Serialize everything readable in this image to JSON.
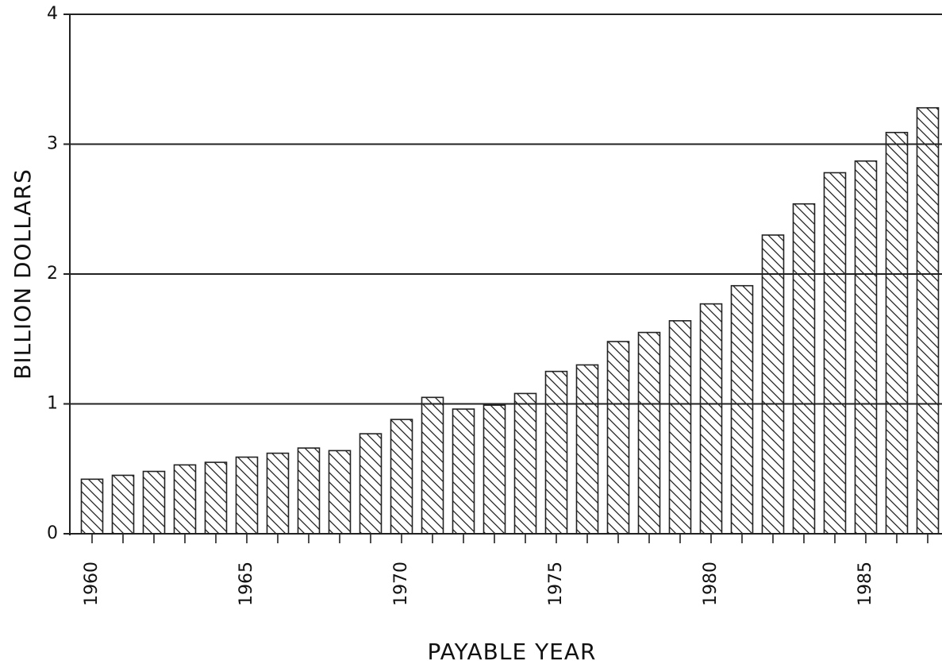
{
  "chart_data": {
    "type": "bar",
    "y_label": "BILLION DOLLARS",
    "x_label": "PAYABLE YEAR",
    "categories": [
      "1960",
      null,
      null,
      null,
      null,
      "1965",
      null,
      null,
      null,
      null,
      "1970",
      null,
      null,
      null,
      null,
      "1975",
      null,
      null,
      null,
      null,
      "1980",
      null,
      null,
      null,
      null,
      "1985",
      null,
      null
    ],
    "values": [
      0.42,
      0.45,
      0.48,
      0.53,
      0.55,
      0.59,
      0.62,
      0.66,
      0.64,
      0.77,
      0.88,
      1.05,
      0.96,
      0.99,
      1.08,
      1.25,
      1.3,
      1.48,
      1.55,
      1.64,
      1.77,
      1.91,
      2.3,
      2.54,
      2.78,
      2.87,
      3.09,
      3.28
    ],
    "color": "#ffffff",
    "ylim": [
      0,
      4
    ],
    "yticks": [
      0,
      1,
      2,
      3,
      4
    ],
    "grid": true
  }
}
